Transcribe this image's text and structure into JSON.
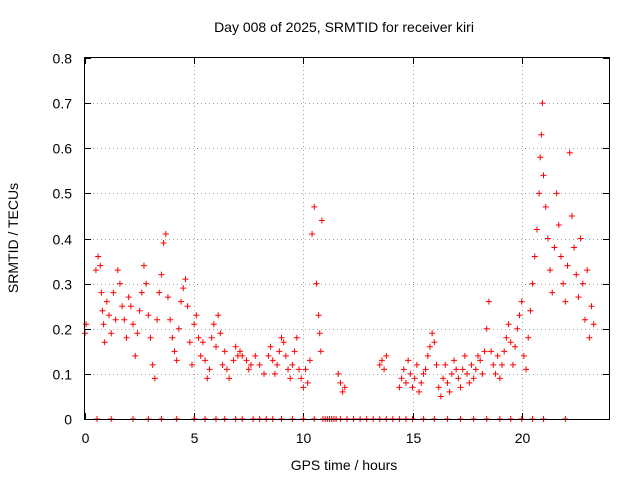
{
  "chart_data": {
    "type": "scatter",
    "title": "Day 008 of 2025, SRMTID for receiver kiri",
    "xlabel": "GPS time / hours",
    "ylabel": "SRMTID / TECUs",
    "xlim": [
      0,
      24
    ],
    "ylim": [
      0,
      0.8
    ],
    "xticks": [
      0,
      5,
      10,
      15,
      20
    ],
    "xtick_labels": [
      "0",
      "5",
      "10",
      "15",
      "20"
    ],
    "yticks": [
      0,
      0.1,
      0.2,
      0.3,
      0.4,
      0.5,
      0.6,
      0.7,
      0.8
    ],
    "ytick_labels": [
      "0",
      "0.1",
      "0.2",
      "0.3",
      "0.4",
      "0.5",
      "0.6",
      "0.7",
      "0.8"
    ],
    "grid": true,
    "marker": "plus",
    "color": "#ff0000",
    "series": [
      {
        "name": "SRMTID",
        "points": [
          [
            0.0,
            0.19
          ],
          [
            0.05,
            0.21
          ],
          [
            0.5,
            0.33
          ],
          [
            0.6,
            0.36
          ],
          [
            0.7,
            0.34
          ],
          [
            0.75,
            0.28
          ],
          [
            0.8,
            0.24
          ],
          [
            0.85,
            0.21
          ],
          [
            0.9,
            0.17
          ],
          [
            1.0,
            0.26
          ],
          [
            1.1,
            0.23
          ],
          [
            1.2,
            0.19
          ],
          [
            1.3,
            0.28
          ],
          [
            1.4,
            0.22
          ],
          [
            1.5,
            0.33
          ],
          [
            1.6,
            0.3
          ],
          [
            1.7,
            0.25
          ],
          [
            1.8,
            0.22
          ],
          [
            1.9,
            0.18
          ],
          [
            2.0,
            0.27
          ],
          [
            2.1,
            0.25
          ],
          [
            2.2,
            0.21
          ],
          [
            2.3,
            0.14
          ],
          [
            2.4,
            0.19
          ],
          [
            2.5,
            0.24
          ],
          [
            2.6,
            0.28
          ],
          [
            2.7,
            0.34
          ],
          [
            2.8,
            0.3
          ],
          [
            2.9,
            0.23
          ],
          [
            3.0,
            0.18
          ],
          [
            3.1,
            0.12
          ],
          [
            3.2,
            0.09
          ],
          [
            3.3,
            0.22
          ],
          [
            3.4,
            0.28
          ],
          [
            3.5,
            0.32
          ],
          [
            3.6,
            0.39
          ],
          [
            3.7,
            0.41
          ],
          [
            3.8,
            0.27
          ],
          [
            3.9,
            0.22
          ],
          [
            4.0,
            0.18
          ],
          [
            4.1,
            0.15
          ],
          [
            4.2,
            0.13
          ],
          [
            4.3,
            0.2
          ],
          [
            4.4,
            0.26
          ],
          [
            4.5,
            0.29
          ],
          [
            4.6,
            0.31
          ],
          [
            4.7,
            0.25
          ],
          [
            4.8,
            0.17
          ],
          [
            4.9,
            0.12
          ],
          [
            5.0,
            0.21
          ],
          [
            5.1,
            0.23
          ],
          [
            5.2,
            0.18
          ],
          [
            5.3,
            0.14
          ],
          [
            5.4,
            0.17
          ],
          [
            5.5,
            0.13
          ],
          [
            5.6,
            0.09
          ],
          [
            5.7,
            0.11
          ],
          [
            5.8,
            0.18
          ],
          [
            5.9,
            0.21
          ],
          [
            6.0,
            0.16
          ],
          [
            6.1,
            0.23
          ],
          [
            6.2,
            0.19
          ],
          [
            6.3,
            0.12
          ],
          [
            6.4,
            0.15
          ],
          [
            6.5,
            0.11
          ],
          [
            6.6,
            0.09
          ],
          [
            6.8,
            0.13
          ],
          [
            6.9,
            0.16
          ],
          [
            7.0,
            0.14
          ],
          [
            7.1,
            0.15
          ],
          [
            7.2,
            0.14
          ],
          [
            7.4,
            0.13
          ],
          [
            7.5,
            0.11
          ],
          [
            7.6,
            0.12
          ],
          [
            7.8,
            0.14
          ],
          [
            8.0,
            0.12
          ],
          [
            8.2,
            0.1
          ],
          [
            8.4,
            0.14
          ],
          [
            8.5,
            0.16
          ],
          [
            8.6,
            0.13
          ],
          [
            8.7,
            0.1
          ],
          [
            8.8,
            0.12
          ],
          [
            8.9,
            0.15
          ],
          [
            9.0,
            0.18
          ],
          [
            9.1,
            0.17
          ],
          [
            9.2,
            0.14
          ],
          [
            9.3,
            0.11
          ],
          [
            9.4,
            0.09
          ],
          [
            9.5,
            0.12
          ],
          [
            9.6,
            0.15
          ],
          [
            9.7,
            0.18
          ],
          [
            9.8,
            0.11
          ],
          [
            9.9,
            0.09
          ],
          [
            10.0,
            0.07
          ],
          [
            10.1,
            0.11
          ],
          [
            10.2,
            0.08
          ],
          [
            10.3,
            0.13
          ],
          [
            10.4,
            0.41
          ],
          [
            10.5,
            0.47
          ],
          [
            10.6,
            0.3
          ],
          [
            10.7,
            0.23
          ],
          [
            10.75,
            0.19
          ],
          [
            10.8,
            0.15
          ],
          [
            10.85,
            0.44
          ],
          [
            11.6,
            0.1
          ],
          [
            11.7,
            0.08
          ],
          [
            11.8,
            0.06
          ],
          [
            11.9,
            0.07
          ],
          [
            13.5,
            0.12
          ],
          [
            13.6,
            0.13
          ],
          [
            13.7,
            0.11
          ],
          [
            13.8,
            0.14
          ],
          [
            14.4,
            0.07
          ],
          [
            14.5,
            0.09
          ],
          [
            14.6,
            0.11
          ],
          [
            14.7,
            0.08
          ],
          [
            14.8,
            0.13
          ],
          [
            14.9,
            0.1
          ],
          [
            15.0,
            0.07
          ],
          [
            15.1,
            0.09
          ],
          [
            15.2,
            0.12
          ],
          [
            15.3,
            0.06
          ],
          [
            15.4,
            0.08
          ],
          [
            15.5,
            0.1
          ],
          [
            15.6,
            0.11
          ],
          [
            15.7,
            0.14
          ],
          [
            15.8,
            0.16
          ],
          [
            15.9,
            0.19
          ],
          [
            16.0,
            0.17
          ],
          [
            16.1,
            0.12
          ],
          [
            16.2,
            0.07
          ],
          [
            16.3,
            0.05
          ],
          [
            16.4,
            0.09
          ],
          [
            16.5,
            0.12
          ],
          [
            16.6,
            0.08
          ],
          [
            16.7,
            0.06
          ],
          [
            16.8,
            0.1
          ],
          [
            16.9,
            0.13
          ],
          [
            17.0,
            0.11
          ],
          [
            17.1,
            0.09
          ],
          [
            17.2,
            0.07
          ],
          [
            17.3,
            0.11
          ],
          [
            17.4,
            0.14
          ],
          [
            17.5,
            0.1
          ],
          [
            17.6,
            0.08
          ],
          [
            17.7,
            0.12
          ],
          [
            17.8,
            0.09
          ],
          [
            17.9,
            0.11
          ],
          [
            18.0,
            0.14
          ],
          [
            18.1,
            0.13
          ],
          [
            18.2,
            0.1
          ],
          [
            18.3,
            0.15
          ],
          [
            18.4,
            0.2
          ],
          [
            18.5,
            0.26
          ],
          [
            18.6,
            0.15
          ],
          [
            18.7,
            0.12
          ],
          [
            18.8,
            0.1
          ],
          [
            18.9,
            0.14
          ],
          [
            19.0,
            0.09
          ],
          [
            19.1,
            0.12
          ],
          [
            19.2,
            0.15
          ],
          [
            19.3,
            0.18
          ],
          [
            19.4,
            0.21
          ],
          [
            19.5,
            0.17
          ],
          [
            19.6,
            0.12
          ],
          [
            19.7,
            0.16
          ],
          [
            19.8,
            0.2
          ],
          [
            19.9,
            0.23
          ],
          [
            20.0,
            0.26
          ],
          [
            20.1,
            0.14
          ],
          [
            20.2,
            0.11
          ],
          [
            20.3,
            0.18
          ],
          [
            20.4,
            0.24
          ],
          [
            20.5,
            0.3
          ],
          [
            20.6,
            0.36
          ],
          [
            20.7,
            0.42
          ],
          [
            20.8,
            0.5
          ],
          [
            20.85,
            0.58
          ],
          [
            20.9,
            0.63
          ],
          [
            20.95,
            0.7
          ],
          [
            21.0,
            0.54
          ],
          [
            21.1,
            0.47
          ],
          [
            21.2,
            0.4
          ],
          [
            21.3,
            0.33
          ],
          [
            21.4,
            0.28
          ],
          [
            21.5,
            0.38
          ],
          [
            21.6,
            0.5
          ],
          [
            21.7,
            0.43
          ],
          [
            21.8,
            0.36
          ],
          [
            21.9,
            0.3
          ],
          [
            22.0,
            0.26
          ],
          [
            22.1,
            0.34
          ],
          [
            22.2,
            0.59
          ],
          [
            22.3,
            0.45
          ],
          [
            22.4,
            0.38
          ],
          [
            22.5,
            0.32
          ],
          [
            22.6,
            0.27
          ],
          [
            22.7,
            0.4
          ],
          [
            22.8,
            0.3
          ],
          [
            22.9,
            0.22
          ],
          [
            23.0,
            0.33
          ],
          [
            23.1,
            0.18
          ],
          [
            23.2,
            0.25
          ],
          [
            23.3,
            0.21
          ]
        ],
        "zero_points_x": [
          0.55,
          1.2,
          2.2,
          2.9,
          3.5,
          4.2,
          5.0,
          5.5,
          6.0,
          6.4,
          6.9,
          7.2,
          7.7,
          8.0,
          8.3,
          8.6,
          9.0,
          9.5,
          10.0,
          10.5,
          10.9,
          11.0,
          11.1,
          11.2,
          11.3,
          11.4,
          11.5,
          11.7,
          12.0,
          12.3,
          12.6,
          12.9,
          13.2,
          13.5,
          13.8,
          14.1,
          14.4,
          14.7,
          15.0,
          15.5,
          16.0,
          16.6,
          17.2,
          17.8,
          18.4,
          19.0,
          19.5,
          20.0,
          20.5,
          21.0,
          22.0
        ]
      }
    ]
  }
}
